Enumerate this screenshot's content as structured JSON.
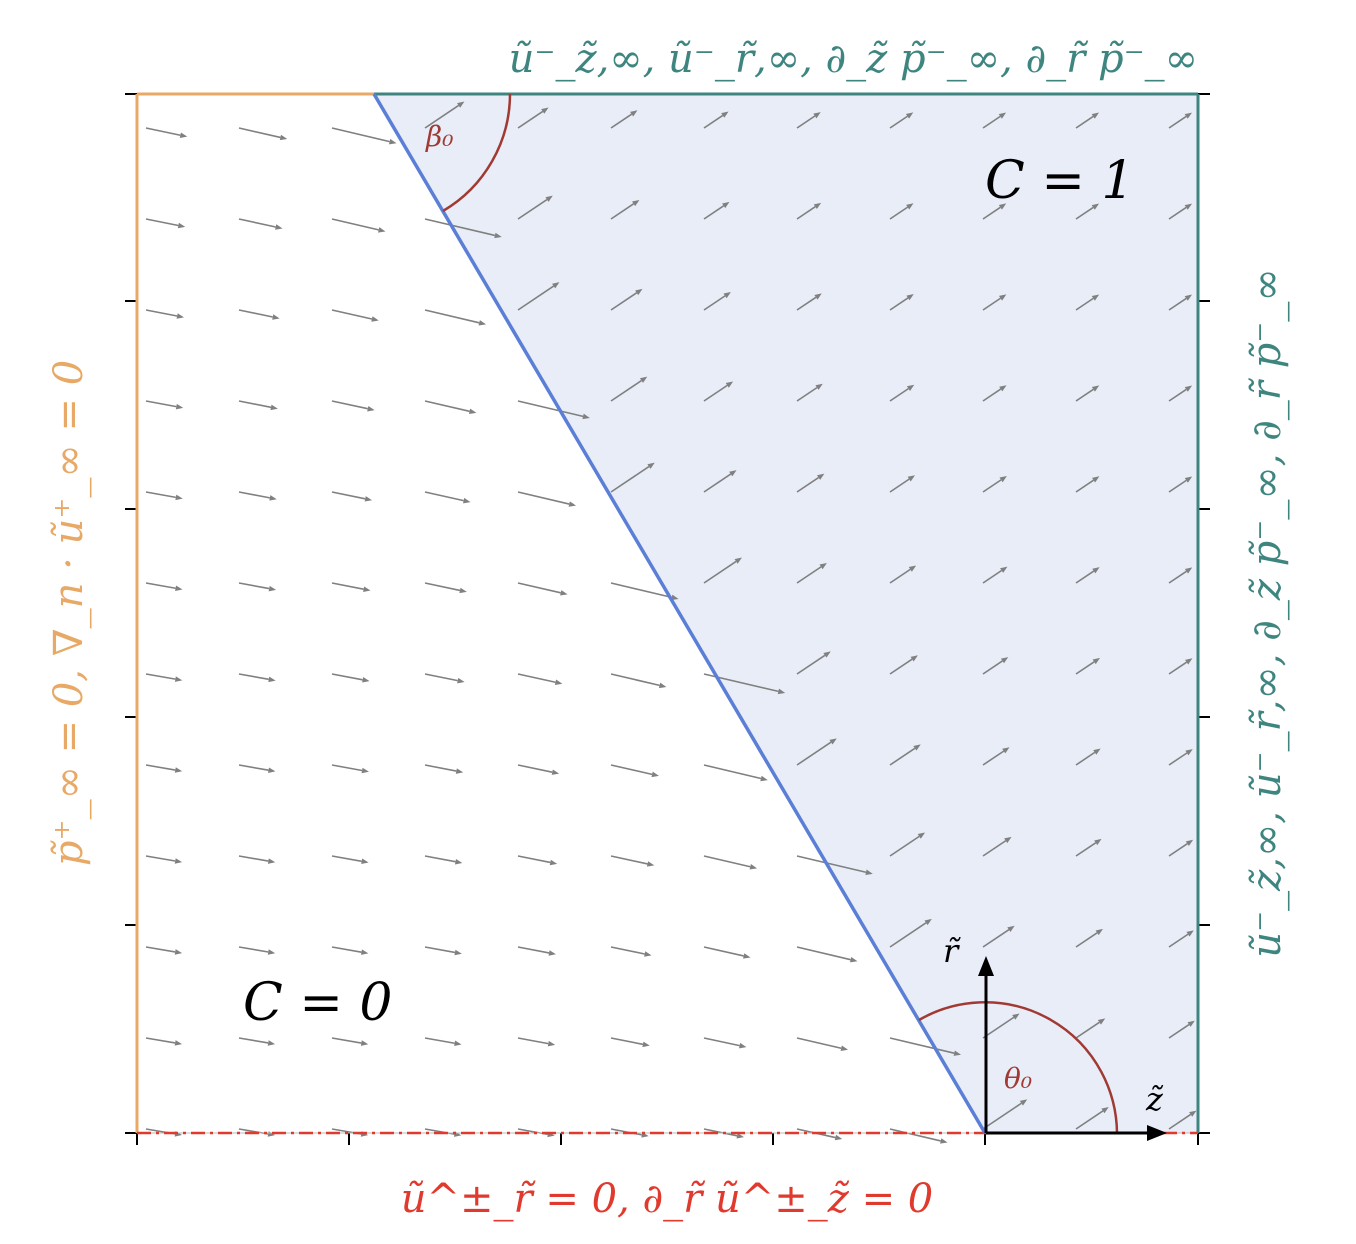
{
  "labels": {
    "top_boundary": "ũ⁻_z̃,∞,   ũ⁻_r̃,∞,   ∂_z̃ p̃⁻_∞,   ∂_r̃ p̃⁻_∞",
    "right_boundary": "ũ⁻_z̃,∞,   ũ⁻_r̃,∞,   ∂_z̃ p̃⁻_∞,   ∂_r̃ p̃⁻_∞",
    "left_boundary": "p̃⁺_∞ = 0,   ∇_n · ũ⁺_∞ = 0",
    "bottom_boundary": "ũ^±_r̃ = 0,   ∂_r̃ ũ^±_z̃ = 0",
    "region_liquid": "C = 1",
    "region_gas": "C = 0",
    "angle_beta": "β₀",
    "angle_theta": "θ₀",
    "axis_r": "r̃",
    "axis_z": "z̃"
  },
  "colors": {
    "left": "#E8A966",
    "top_right": "#3E8580",
    "bottom": "#E03A2E",
    "interface": "#5B7FD6",
    "region_fill": "#E8EDF8",
    "angle": "#A03A33",
    "arrows": "#808080"
  }
}
